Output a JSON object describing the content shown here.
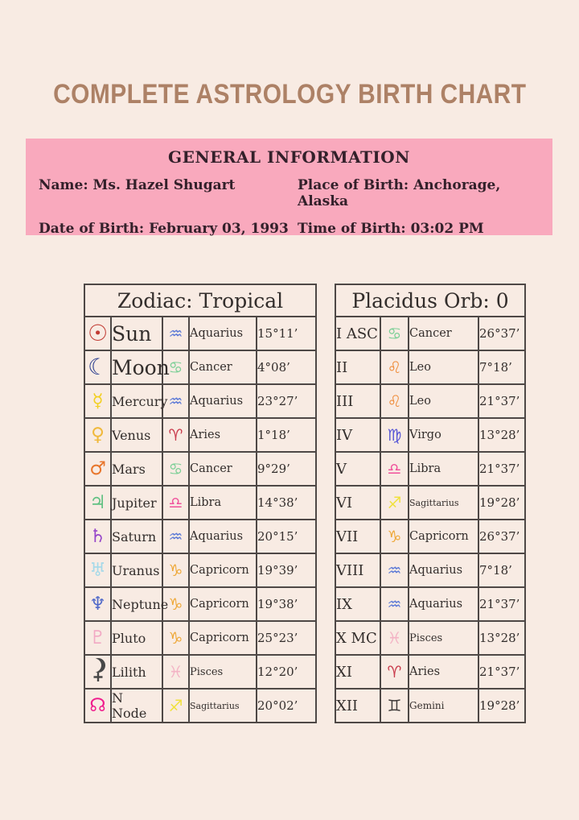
{
  "title": "COMPLETE ASTROLOGY BIRTH CHART",
  "colors": {
    "page_background": "#f8ebe3",
    "panel_pink": "#f9a9bd",
    "title_brown": "#ad8166",
    "table_border": "#4e4846",
    "text_dark": "#332e2c"
  },
  "general_info": {
    "title": "GENERAL INFORMATION",
    "name": "Name: Ms. Hazel Shugart",
    "date_of_birth": "Date of Birth: February 03, 1993",
    "place_of_birth": "Place of Birth: Anchorage, Alaska",
    "time_of_birth": "Time of Birth: 03:02 PM"
  },
  "zodiac_table": {
    "title": "Zodiac: Tropical",
    "rows": [
      {
        "planet": "Sun",
        "symbol": "☉",
        "symbol_color": "#c13b33",
        "sign": "Aquarius",
        "sign_symbol": "♒",
        "sign_color": "#5a78d6",
        "degrees": "15°11’"
      },
      {
        "planet": "Moon",
        "symbol": "☾",
        "symbol_color": "#2d3f8f",
        "sign": "Cancer",
        "sign_symbol": "♋",
        "sign_color": "#7bcf96",
        "degrees": "4°08’"
      },
      {
        "planet": "Mercury",
        "symbol": "☿",
        "symbol_color": "#f2cf1f",
        "sign": "Aquarius",
        "sign_symbol": "♒",
        "sign_color": "#5a78d6",
        "degrees": "23°27’"
      },
      {
        "planet": "Venus",
        "symbol": "♀",
        "symbol_color": "#f0b93c",
        "sign": "Aries",
        "sign_symbol": "♈",
        "sign_color": "#c93b4c",
        "degrees": "1°18’"
      },
      {
        "planet": "Mars",
        "symbol": "♂",
        "symbol_color": "#e8762c",
        "sign": "Cancer",
        "sign_symbol": "♋",
        "sign_color": "#7bcf96",
        "degrees": "9°29’"
      },
      {
        "planet": "Jupiter",
        "symbol": "♃",
        "symbol_color": "#62c183",
        "sign": "Libra",
        "sign_symbol": "♎",
        "sign_color": "#f0529c",
        "degrees": "14°38’"
      },
      {
        "planet": "Saturn",
        "symbol": "♄",
        "symbol_color": "#9646c9",
        "sign": "Aquarius",
        "sign_symbol": "♒",
        "sign_color": "#5a78d6",
        "degrees": "20°15’"
      },
      {
        "planet": "Uranus",
        "symbol": "♅",
        "symbol_color": "#a5d9e9",
        "sign": "Capricorn",
        "sign_symbol": "♑",
        "sign_color": "#eea838",
        "degrees": "19°39’"
      },
      {
        "planet": "Neptune",
        "symbol": "♆",
        "symbol_color": "#5069c9",
        "sign": "Capricorn",
        "sign_symbol": "♑",
        "sign_color": "#eea838",
        "degrees": "19°38’"
      },
      {
        "planet": "Pluto",
        "symbol": "♇",
        "symbol_color": "#f2a9c4",
        "sign": "Capricorn",
        "sign_symbol": "♑",
        "sign_color": "#eea838",
        "degrees": "25°23’"
      },
      {
        "planet": "Lilith",
        "symbol": "⚸",
        "symbol_color": "#474747",
        "sign": "Pisces",
        "sign_symbol": "♓",
        "sign_color": "#f3b3c5",
        "degrees": "12°20’"
      },
      {
        "planet": "N Node",
        "symbol": "☊",
        "symbol_color": "#ef1d8d",
        "sign": "Sagittarius",
        "sign_symbol": "♐",
        "sign_color": "#f0e13c",
        "degrees": "20°02’"
      }
    ]
  },
  "houses_table": {
    "title": "Placidus Orb: 0",
    "rows": [
      {
        "house": "I ASC",
        "sign": "Cancer",
        "sign_symbol": "♋",
        "sign_color": "#7bcf96",
        "degrees": "26°37’"
      },
      {
        "house": "II",
        "sign": "Leo",
        "sign_symbol": "♌",
        "sign_color": "#ef8e3d",
        "degrees": "7°18’"
      },
      {
        "house": "III",
        "sign": "Leo",
        "sign_symbol": "♌",
        "sign_color": "#ef8e3d",
        "degrees": "21°37’"
      },
      {
        "house": "IV",
        "sign": "Virgo",
        "sign_symbol": "♍",
        "sign_color": "#5a5ad6",
        "degrees": "13°28’"
      },
      {
        "house": "V",
        "sign": "Libra",
        "sign_symbol": "♎",
        "sign_color": "#f0529c",
        "degrees": "21°37’"
      },
      {
        "house": "VI",
        "sign": "Sagittarius",
        "sign_symbol": "♐",
        "sign_color": "#f0e13c",
        "degrees": "19°28’"
      },
      {
        "house": "VII",
        "sign": "Capricorn",
        "sign_symbol": "♑",
        "sign_color": "#eea838",
        "degrees": "26°37’"
      },
      {
        "house": "VIII",
        "sign": "Aquarius",
        "sign_symbol": "♒",
        "sign_color": "#5a78d6",
        "degrees": "7°18’"
      },
      {
        "house": "IX",
        "sign": "Aquarius",
        "sign_symbol": "♒",
        "sign_color": "#5a78d6",
        "degrees": "21°37’"
      },
      {
        "house": "X MC",
        "sign": "Pisces",
        "sign_symbol": "♓",
        "sign_color": "#f3b3c5",
        "degrees": "13°28’"
      },
      {
        "house": "XI",
        "sign": "Aries",
        "sign_symbol": "♈",
        "sign_color": "#c93b4c",
        "degrees": "21°37’"
      },
      {
        "house": "XII",
        "sign": "Gemini",
        "sign_symbol": "♊",
        "sign_color": "#3f3b3a",
        "degrees": "19°28’"
      }
    ]
  }
}
